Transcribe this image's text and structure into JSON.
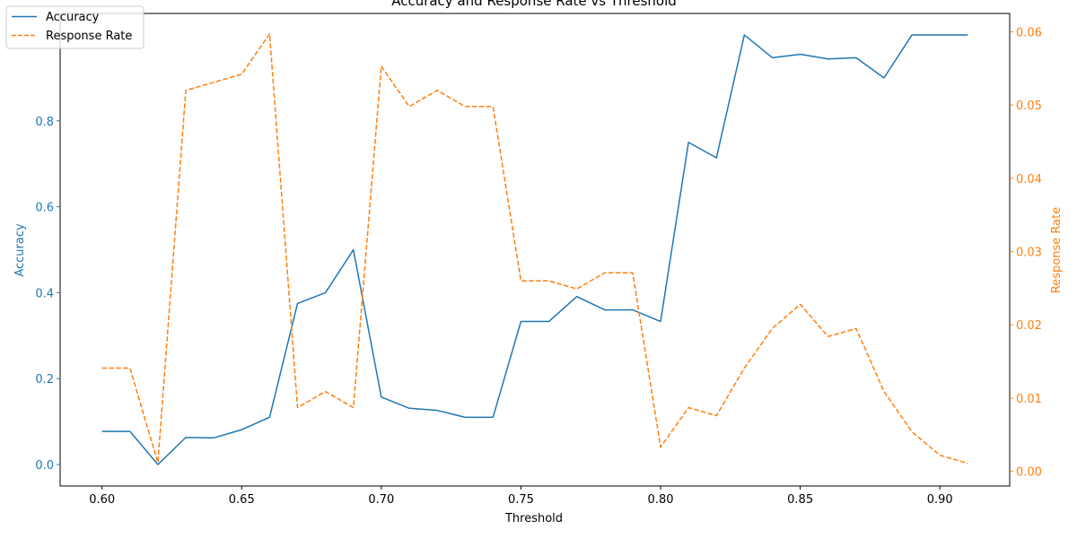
{
  "chart_data": {
    "type": "line",
    "title": "Accuracy and Response Rate vs Threshold",
    "xlabel": "Threshold",
    "ylabel_left": "Accuracy",
    "ylabel_right": "Response Rate",
    "xlim": [
      0.585,
      0.925
    ],
    "ylim_left": [
      -0.05,
      1.05
    ],
    "ylim_right": [
      -0.002,
      0.0625
    ],
    "x_ticks": [
      "0.60",
      "0.65",
      "0.70",
      "0.75",
      "0.80",
      "0.85",
      "0.90"
    ],
    "y_left_ticks": [
      "0.0",
      "0.2",
      "0.4",
      "0.6",
      "0.8"
    ],
    "y_right_ticks": [
      "0.00",
      "0.01",
      "0.02",
      "0.03",
      "0.04",
      "0.05",
      "0.06"
    ],
    "grid": false,
    "legend_position": "top-left",
    "x": [
      0.6,
      0.61,
      0.62,
      0.63,
      0.64,
      0.65,
      0.66,
      0.67,
      0.68,
      0.69,
      0.7,
      0.71,
      0.72,
      0.73,
      0.74,
      0.75,
      0.76,
      0.77,
      0.78,
      0.79,
      0.8,
      0.81,
      0.82,
      0.83,
      0.84,
      0.85,
      0.86,
      0.87,
      0.88,
      0.89,
      0.9,
      0.91
    ],
    "series": [
      {
        "name": "Accuracy",
        "axis": "left",
        "color": "#1f77b4",
        "style": "solid",
        "values": [
          0.077,
          0.077,
          0.0,
          0.063,
          0.062,
          0.081,
          0.11,
          0.375,
          0.4,
          0.5,
          0.157,
          0.131,
          0.126,
          0.11,
          0.11,
          0.333,
          0.333,
          0.391,
          0.36,
          0.36,
          0.333,
          0.75,
          0.714,
          1.0,
          0.947,
          0.955,
          0.944,
          0.947,
          0.9,
          1.0,
          1.0,
          1.0
        ]
      },
      {
        "name": "Response Rate",
        "axis": "right",
        "color": "#ff7f0e",
        "style": "dashed",
        "values": [
          0.0141,
          0.0141,
          0.0012,
          0.052,
          0.0531,
          0.0542,
          0.0597,
          0.0087,
          0.0109,
          0.0087,
          0.0553,
          0.0498,
          0.052,
          0.0498,
          0.0498,
          0.026,
          0.026,
          0.0249,
          0.0271,
          0.0271,
          0.0033,
          0.0087,
          0.0076,
          0.0141,
          0.0195,
          0.0228,
          0.0184,
          0.0195,
          0.0109,
          0.0054,
          0.0022,
          0.0011
        ]
      }
    ]
  }
}
